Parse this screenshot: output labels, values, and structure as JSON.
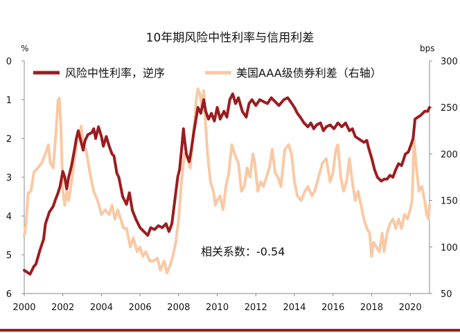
{
  "chart_data": {
    "type": "line",
    "title": "10年期风险中性利率与信用利差",
    "annotation": "相关系数：-0.54",
    "legend_position": "top",
    "grid": false,
    "y_left": {
      "unit_label": "%",
      "min": 0,
      "max": 6,
      "inverted": true,
      "ticks": [
        0,
        1,
        2,
        3,
        4,
        5,
        6
      ]
    },
    "y_right": {
      "unit_label": "bps",
      "min": 50,
      "max": 300,
      "ticks": [
        50,
        100,
        150,
        200,
        250,
        300
      ]
    },
    "x_axis": {
      "min": 2000,
      "max": 2021,
      "ticks": [
        2000,
        2002,
        2004,
        2006,
        2008,
        2010,
        2012,
        2014,
        2016,
        2018,
        2020
      ]
    },
    "colors": {
      "primary": "#9b1c1f",
      "secondary": "#f9c9a4",
      "axis": "#888888",
      "text": "#111111"
    },
    "series": [
      {
        "name": "风险中性利率，逆序",
        "axis": "left",
        "color": "#9b1c1f",
        "points": [
          [
            2000.0,
            5.4
          ],
          [
            2000.15,
            5.45
          ],
          [
            2000.3,
            5.5
          ],
          [
            2000.5,
            5.3
          ],
          [
            2000.6,
            5.25
          ],
          [
            2000.8,
            4.9
          ],
          [
            2001.0,
            4.6
          ],
          [
            2001.1,
            4.2
          ],
          [
            2001.3,
            3.9
          ],
          [
            2001.5,
            3.75
          ],
          [
            2001.6,
            3.6
          ],
          [
            2001.75,
            3.4
          ],
          [
            2001.85,
            3.25
          ],
          [
            2002.0,
            2.85
          ],
          [
            2002.1,
            3.0
          ],
          [
            2002.2,
            3.3
          ],
          [
            2002.3,
            3.0
          ],
          [
            2002.45,
            2.7
          ],
          [
            2002.6,
            2.3
          ],
          [
            2002.7,
            2.0
          ],
          [
            2002.8,
            1.8
          ],
          [
            2002.9,
            2.0
          ],
          [
            2003.05,
            2.3
          ],
          [
            2003.15,
            2.05
          ],
          [
            2003.3,
            1.9
          ],
          [
            2003.5,
            1.85
          ],
          [
            2003.6,
            1.75
          ],
          [
            2003.7,
            2.0
          ],
          [
            2003.85,
            1.7
          ],
          [
            2004.0,
            1.95
          ],
          [
            2004.1,
            2.2
          ],
          [
            2004.25,
            1.95
          ],
          [
            2004.4,
            2.2
          ],
          [
            2004.55,
            2.4
          ],
          [
            2004.65,
            2.45
          ],
          [
            2004.8,
            2.9
          ],
          [
            2004.9,
            3.0
          ],
          [
            2005.1,
            3.5
          ],
          [
            2005.3,
            3.7
          ],
          [
            2005.45,
            3.4
          ],
          [
            2005.6,
            3.85
          ],
          [
            2005.8,
            4.1
          ],
          [
            2006.0,
            4.3
          ],
          [
            2006.2,
            4.4
          ],
          [
            2006.4,
            4.5
          ],
          [
            2006.55,
            4.3
          ],
          [
            2006.75,
            4.35
          ],
          [
            2006.95,
            4.25
          ],
          [
            2007.15,
            4.3
          ],
          [
            2007.35,
            4.2
          ],
          [
            2007.5,
            4.4
          ],
          [
            2007.65,
            4.2
          ],
          [
            2007.8,
            3.6
          ],
          [
            2007.95,
            3.0
          ],
          [
            2008.05,
            2.8
          ],
          [
            2008.15,
            2.3
          ],
          [
            2008.25,
            1.75
          ],
          [
            2008.3,
            2.0
          ],
          [
            2008.4,
            2.4
          ],
          [
            2008.55,
            2.6
          ],
          [
            2008.65,
            2.3
          ],
          [
            2008.8,
            1.8
          ],
          [
            2008.9,
            1.5
          ],
          [
            2009.0,
            1.2
          ],
          [
            2009.15,
            1.35
          ],
          [
            2009.3,
            1.0
          ],
          [
            2009.4,
            1.3
          ],
          [
            2009.55,
            1.5
          ],
          [
            2009.7,
            1.35
          ],
          [
            2009.85,
            1.55
          ],
          [
            2010.0,
            1.2
          ],
          [
            2010.15,
            1.5
          ],
          [
            2010.35,
            1.3
          ],
          [
            2010.5,
            1.45
          ],
          [
            2010.65,
            1.0
          ],
          [
            2010.8,
            0.85
          ],
          [
            2010.95,
            1.1
          ],
          [
            2011.1,
            0.95
          ],
          [
            2011.3,
            1.3
          ],
          [
            2011.5,
            1.45
          ],
          [
            2011.65,
            1.1
          ],
          [
            2011.8,
            1.0
          ],
          [
            2012.0,
            1.15
          ],
          [
            2012.2,
            1.0
          ],
          [
            2012.4,
            1.05
          ],
          [
            2012.6,
            1.1
          ],
          [
            2012.8,
            0.95
          ],
          [
            2013.0,
            1.05
          ],
          [
            2013.2,
            1.15
          ],
          [
            2013.45,
            1.0
          ],
          [
            2013.65,
            0.95
          ],
          [
            2013.8,
            1.05
          ],
          [
            2014.0,
            1.2
          ],
          [
            2014.15,
            1.35
          ],
          [
            2014.3,
            1.45
          ],
          [
            2014.5,
            1.6
          ],
          [
            2014.7,
            1.7
          ],
          [
            2014.85,
            1.6
          ],
          [
            2015.0,
            1.75
          ],
          [
            2015.15,
            1.65
          ],
          [
            2015.35,
            1.6
          ],
          [
            2015.5,
            1.8
          ],
          [
            2015.65,
            1.7
          ],
          [
            2015.85,
            1.65
          ],
          [
            2016.05,
            1.75
          ],
          [
            2016.25,
            1.6
          ],
          [
            2016.45,
            1.7
          ],
          [
            2016.65,
            1.6
          ],
          [
            2016.85,
            1.8
          ],
          [
            2017.0,
            1.75
          ],
          [
            2017.15,
            1.95
          ],
          [
            2017.3,
            2.0
          ],
          [
            2017.45,
            2.05
          ],
          [
            2017.6,
            2.1
          ],
          [
            2017.75,
            2.05
          ],
          [
            2017.85,
            2.25
          ],
          [
            2018.0,
            2.5
          ],
          [
            2018.15,
            2.8
          ],
          [
            2018.3,
            3.0
          ],
          [
            2018.5,
            3.1
          ],
          [
            2018.65,
            3.05
          ],
          [
            2018.8,
            3.05
          ],
          [
            2018.95,
            2.95
          ],
          [
            2019.1,
            3.0
          ],
          [
            2019.25,
            2.8
          ],
          [
            2019.4,
            2.65
          ],
          [
            2019.55,
            2.7
          ],
          [
            2019.75,
            2.4
          ],
          [
            2019.9,
            2.35
          ],
          [
            2020.05,
            2.15
          ],
          [
            2020.15,
            2.0
          ],
          [
            2020.25,
            1.5
          ],
          [
            2020.4,
            1.45
          ],
          [
            2020.55,
            1.4
          ],
          [
            2020.75,
            1.3
          ],
          [
            2020.9,
            1.3
          ],
          [
            2021.0,
            1.2
          ]
        ]
      },
      {
        "name": "美国AAA级债券利差（右轴）",
        "axis": "right",
        "color": "#f9c9a4",
        "points": [
          [
            2000.0,
            112
          ],
          [
            2000.1,
            125
          ],
          [
            2000.2,
            158
          ],
          [
            2000.35,
            160
          ],
          [
            2000.5,
            180
          ],
          [
            2000.7,
            185
          ],
          [
            2000.9,
            190
          ],
          [
            2001.1,
            200
          ],
          [
            2001.25,
            210
          ],
          [
            2001.35,
            190
          ],
          [
            2001.5,
            185
          ],
          [
            2001.65,
            225
          ],
          [
            2001.75,
            258
          ],
          [
            2001.82,
            260
          ],
          [
            2001.9,
            230
          ],
          [
            2002.0,
            160
          ],
          [
            2002.1,
            145
          ],
          [
            2002.2,
            160
          ],
          [
            2002.3,
            150
          ],
          [
            2002.45,
            170
          ],
          [
            2002.6,
            195
          ],
          [
            2002.75,
            215
          ],
          [
            2002.85,
            220
          ],
          [
            2002.95,
            230
          ],
          [
            2003.05,
            210
          ],
          [
            2003.2,
            205
          ],
          [
            2003.4,
            180
          ],
          [
            2003.6,
            160
          ],
          [
            2003.8,
            150
          ],
          [
            2004.0,
            135
          ],
          [
            2004.2,
            140
          ],
          [
            2004.4,
            135
          ],
          [
            2004.55,
            145
          ],
          [
            2004.7,
            130
          ],
          [
            2004.85,
            140
          ],
          [
            2005.0,
            130
          ],
          [
            2005.15,
            120
          ],
          [
            2005.3,
            120
          ],
          [
            2005.5,
            100
          ],
          [
            2005.65,
            110
          ],
          [
            2005.85,
            95
          ],
          [
            2006.0,
            100
          ],
          [
            2006.15,
            90
          ],
          [
            2006.3,
            95
          ],
          [
            2006.5,
            85
          ],
          [
            2006.7,
            85
          ],
          [
            2006.9,
            88
          ],
          [
            2007.05,
            75
          ],
          [
            2007.25,
            85
          ],
          [
            2007.4,
            72
          ],
          [
            2007.55,
            80
          ],
          [
            2007.7,
            90
          ],
          [
            2007.85,
            105
          ],
          [
            2008.0,
            130
          ],
          [
            2008.15,
            170
          ],
          [
            2008.3,
            200
          ],
          [
            2008.45,
            195
          ],
          [
            2008.6,
            185
          ],
          [
            2008.75,
            220
          ],
          [
            2008.85,
            240
          ],
          [
            2008.92,
            260
          ],
          [
            2009.0,
            270
          ],
          [
            2009.1,
            265
          ],
          [
            2009.2,
            250
          ],
          [
            2009.3,
            268
          ],
          [
            2009.4,
            230
          ],
          [
            2009.5,
            200
          ],
          [
            2009.65,
            170
          ],
          [
            2009.8,
            160
          ],
          [
            2009.9,
            145
          ],
          [
            2010.0,
            150
          ],
          [
            2010.15,
            155
          ],
          [
            2010.3,
            140
          ],
          [
            2010.45,
            165
          ],
          [
            2010.6,
            180
          ],
          [
            2010.75,
            210
          ],
          [
            2010.9,
            200
          ],
          [
            2011.1,
            190
          ],
          [
            2011.25,
            160
          ],
          [
            2011.4,
            165
          ],
          [
            2011.55,
            185
          ],
          [
            2011.7,
            175
          ],
          [
            2011.85,
            200
          ],
          [
            2011.95,
            190
          ],
          [
            2012.1,
            160
          ],
          [
            2012.25,
            170
          ],
          [
            2012.4,
            165
          ],
          [
            2012.55,
            175
          ],
          [
            2012.7,
            185
          ],
          [
            2012.85,
            205
          ],
          [
            2013.0,
            180
          ],
          [
            2013.15,
            175
          ],
          [
            2013.3,
            165
          ],
          [
            2013.5,
            205
          ],
          [
            2013.7,
            210
          ],
          [
            2013.85,
            200
          ],
          [
            2014.0,
            170
          ],
          [
            2014.15,
            155
          ],
          [
            2014.35,
            150
          ],
          [
            2014.55,
            160
          ],
          [
            2014.7,
            165
          ],
          [
            2014.9,
            155
          ],
          [
            2015.05,
            160
          ],
          [
            2015.25,
            175
          ],
          [
            2015.45,
            190
          ],
          [
            2015.65,
            195
          ],
          [
            2015.85,
            170
          ],
          [
            2016.0,
            180
          ],
          [
            2016.15,
            205
          ],
          [
            2016.25,
            210
          ],
          [
            2016.4,
            175
          ],
          [
            2016.55,
            160
          ],
          [
            2016.7,
            170
          ],
          [
            2016.85,
            195
          ],
          [
            2017.0,
            170
          ],
          [
            2017.15,
            150
          ],
          [
            2017.3,
            160
          ],
          [
            2017.45,
            145
          ],
          [
            2017.6,
            130
          ],
          [
            2017.75,
            120
          ],
          [
            2017.9,
            115
          ],
          [
            2018.0,
            90
          ],
          [
            2018.1,
            105
          ],
          [
            2018.25,
            100
          ],
          [
            2018.4,
            95
          ],
          [
            2018.55,
            115
          ],
          [
            2018.65,
            95
          ],
          [
            2018.8,
            115
          ],
          [
            2018.95,
            125
          ],
          [
            2019.1,
            130
          ],
          [
            2019.25,
            120
          ],
          [
            2019.4,
            130
          ],
          [
            2019.55,
            120
          ],
          [
            2019.7,
            135
          ],
          [
            2019.85,
            130
          ],
          [
            2020.0,
            140
          ],
          [
            2020.1,
            150
          ],
          [
            2020.2,
            215
          ],
          [
            2020.3,
            190
          ],
          [
            2020.45,
            160
          ],
          [
            2020.6,
            165
          ],
          [
            2020.75,
            150
          ],
          [
            2020.85,
            135
          ],
          [
            2020.95,
            130
          ],
          [
            2021.0,
            145
          ]
        ]
      }
    ]
  }
}
